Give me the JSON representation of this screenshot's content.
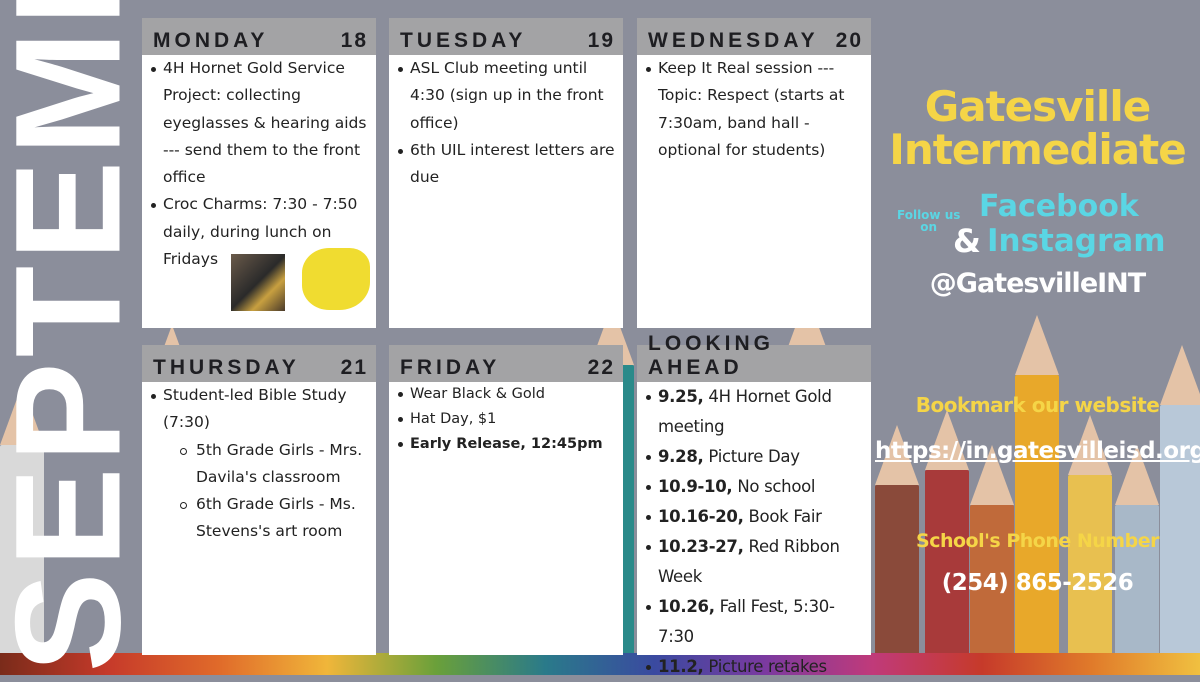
{
  "month": "SEPTEMBER",
  "colors": {
    "title_yellow": "#f5d547",
    "social_cyan": "#5ad6e4",
    "header_gray": "#a3a3a5",
    "background": "#8b8e9b"
  },
  "monday": {
    "day": "MONDAY",
    "date": "18",
    "items": [
      "4H Hornet Gold Service Project: collecting eyeglasses & hearing aids --- send them to the front office",
      "Croc Charms: 7:30 - 7:50 daily, during lunch on Fridays"
    ]
  },
  "tuesday": {
    "day": "TUESDAY",
    "date": "19",
    "items": [
      "ASL Club meeting until 4:30 (sign up in the front office)",
      "6th UIL interest letters are due"
    ]
  },
  "wednesday": {
    "day": "WEDNESDAY",
    "date": "20",
    "items": [
      "Keep It Real session --- Topic: Respect (starts at 7:30am, band hall - optional for students)"
    ]
  },
  "thursday": {
    "day": "THURSDAY",
    "date": "21",
    "items": [
      "Student-led Bible Study (7:30)"
    ],
    "subitems": [
      "5th Grade Girls - Mrs. Davila's classroom",
      "6th Grade Girls - Ms. Stevens's art room"
    ]
  },
  "friday": {
    "day": "FRIDAY",
    "date": "22",
    "items": [
      "Wear Black & Gold",
      "Hat Day, $1"
    ],
    "bold_item": "Early Release, 12:45pm"
  },
  "ahead": {
    "title": "LOOKING AHEAD",
    "items": [
      {
        "date": "9.25,",
        "text": " 4H Hornet Gold meeting"
      },
      {
        "date": "9.28,",
        "text": " Picture Day"
      },
      {
        "date": "10.9-10,",
        "text": " No school"
      },
      {
        "date": "10.16-20,",
        "text": " Book Fair"
      },
      {
        "date": "10.23-27,",
        "text": " Red Ribbon Week"
      },
      {
        "date": "10.26,",
        "text": " Fall Fest, 5:30-7:30"
      },
      {
        "date": "11.2,",
        "text": " Picture retakes"
      }
    ]
  },
  "school": {
    "line1": "Gatesville",
    "line2": "Intermediate",
    "follow": "Follow us",
    "on": "on",
    "facebook": "Facebook",
    "amp": "&",
    "instagram": "Instagram",
    "handle": "@GatesvilleINT"
  },
  "website": {
    "label": "Bookmark our website",
    "url": "https://in.gatesvilleisd.org"
  },
  "phone": {
    "label": "School's Phone Number",
    "number": "(254) 865-2526"
  }
}
